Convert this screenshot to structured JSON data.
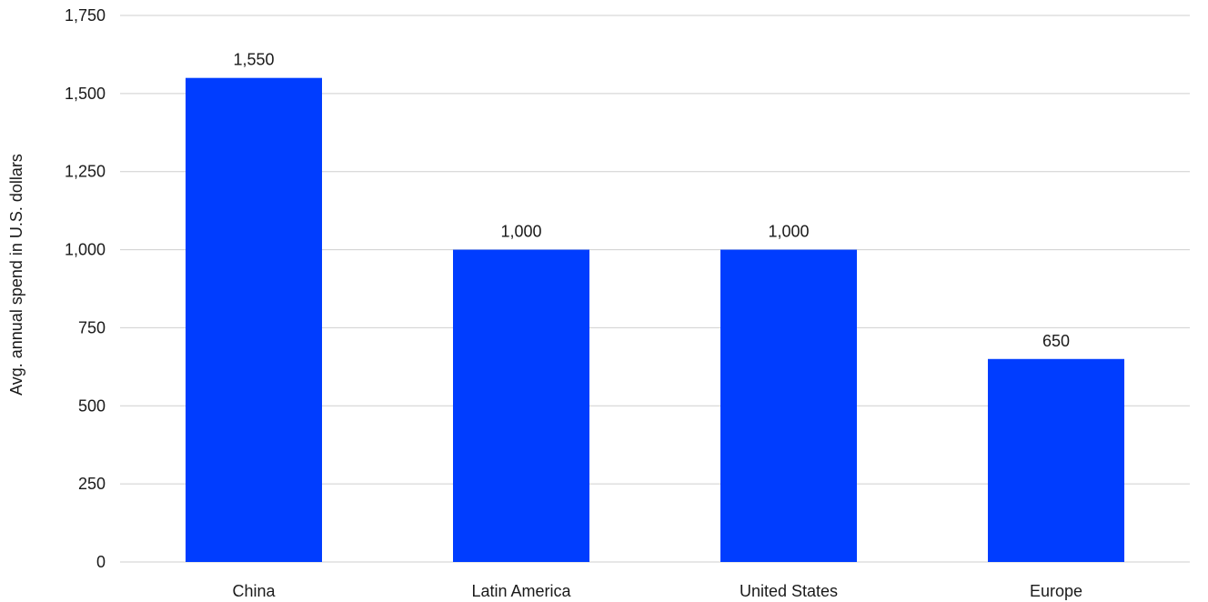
{
  "chart_data": {
    "type": "bar",
    "title": "",
    "xlabel": "",
    "ylabel": "Avg. annual spend in U.S. dollars",
    "categories": [
      "China",
      "Latin America",
      "United States",
      "Europe"
    ],
    "values": [
      1550,
      1000,
      1000,
      650
    ],
    "data_labels": [
      "1,550",
      "1,000",
      "1,000",
      "650"
    ],
    "ylim": [
      0,
      1750
    ],
    "yticks": [
      0,
      250,
      500,
      750,
      1000,
      1250,
      1500,
      1750
    ],
    "ytick_labels": [
      "0",
      "250",
      "500",
      "750",
      "1,000",
      "1,250",
      "1,500",
      "1,750"
    ],
    "grid": true,
    "legend": "none",
    "bar_color": "#003dff",
    "grid_color": "#cfcfcf"
  }
}
